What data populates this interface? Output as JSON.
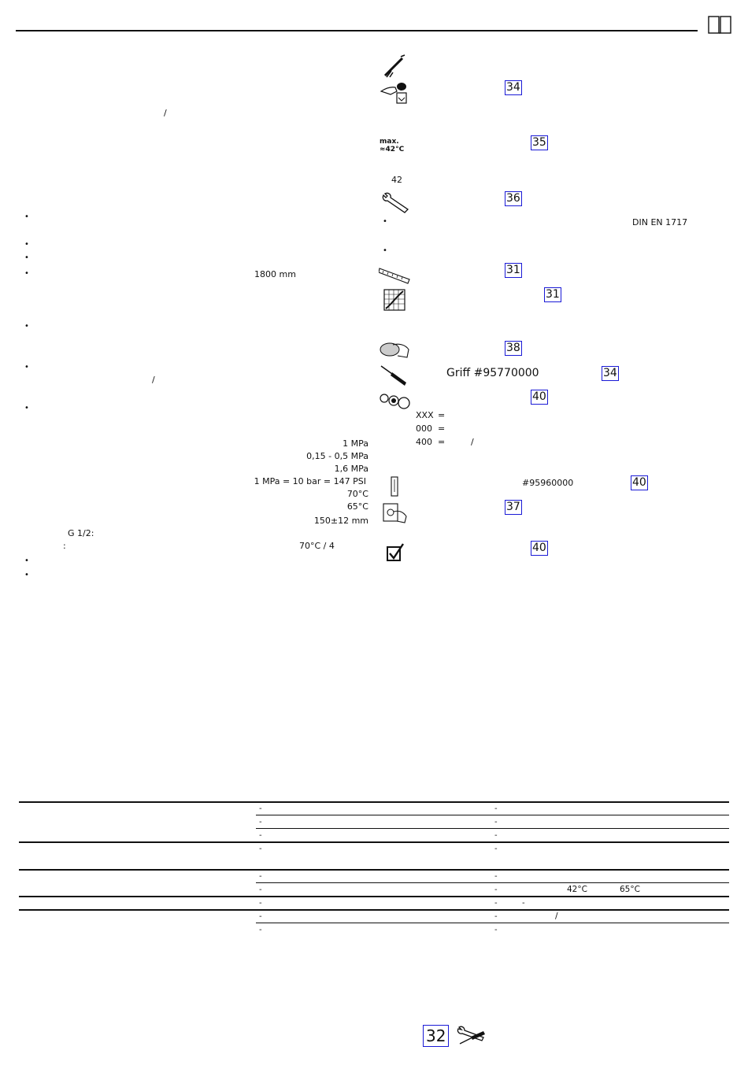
{
  "left_col": {
    "slash1": "/",
    "dist_mm": "1800 mm",
    "slash2": "/",
    "specs": [
      {
        "value": "1 MPa"
      },
      {
        "value": "0,15 - 0,5 MPa"
      },
      {
        "value": "1,6 MPa"
      },
      {
        "value": "1 MPa = 10 bar = 147 PSI"
      },
      {
        "value": "70°C"
      },
      {
        "value": "65°C"
      },
      {
        "value": "150±12 mm"
      }
    ],
    "thread": "G 1/2:",
    "colon": ":",
    "temp_time": "70°C / 4"
  },
  "right_col": {
    "temp_icon_line1": "max.",
    "temp_icon_line2": "≈42°C",
    "temp_value": "42",
    "din": "DIN EN 1717",
    "griff": "Griff #95770000",
    "codes": [
      {
        "code": "XXX",
        "eq": "="
      },
      {
        "code": "000",
        "eq": "="
      },
      {
        "code": "400",
        "eq": "=",
        "tail": "/"
      }
    ],
    "part_number": "#95960000",
    "refs": {
      "r1": "34",
      "r2": "35",
      "r3": "36",
      "r4": "31",
      "r5": "31",
      "r6": "38",
      "r7": "34",
      "r8": "40",
      "r9": "40",
      "r10": "37",
      "r11": "40"
    }
  },
  "table": {
    "dash": "-",
    "temp_a": "42°C",
    "temp_b": "65°C",
    "slash": "/"
  },
  "footer": {
    "page_ref": "32",
    "tools_icon": "wrench-screwdriver-icon"
  }
}
